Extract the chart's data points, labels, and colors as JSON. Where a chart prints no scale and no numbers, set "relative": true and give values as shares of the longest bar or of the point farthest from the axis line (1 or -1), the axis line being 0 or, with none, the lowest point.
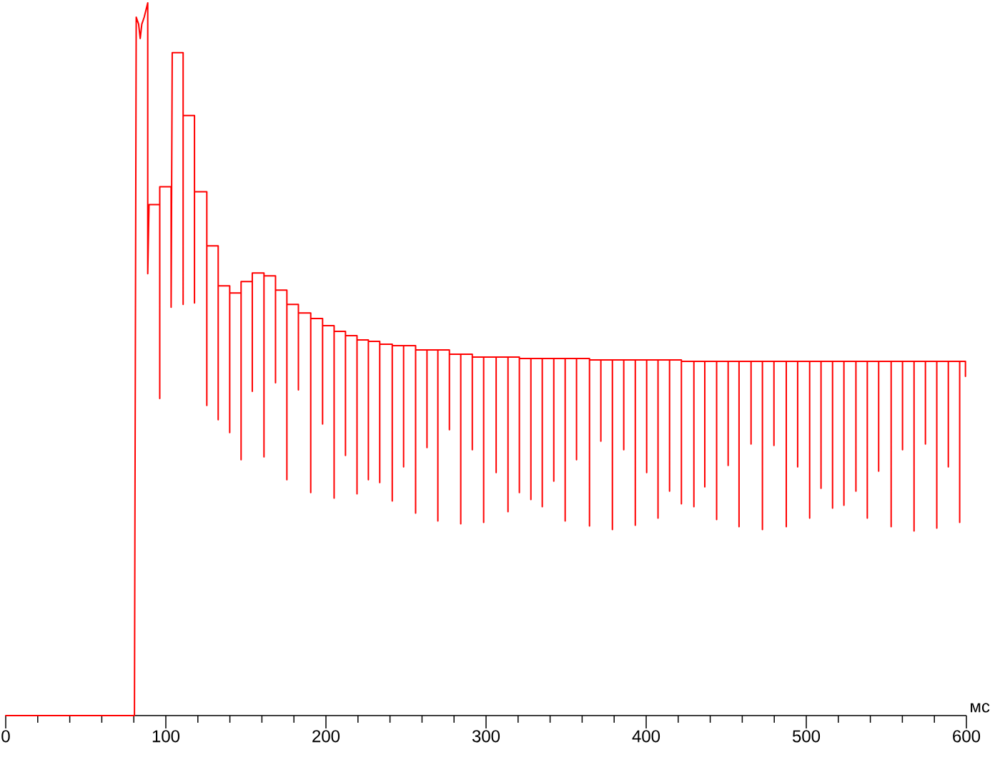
{
  "chart_data": {
    "type": "line",
    "relative": true,
    "xlabel": "мс",
    "color": "#ff0000",
    "tick_labels": "x",
    "xlim": [
      0,
      600
    ],
    "xticks": [
      0,
      100,
      200,
      300,
      400,
      500,
      600
    ],
    "x": [
      0,
      80.4,
      81.5,
      83,
      84,
      85,
      86.5,
      88.7,
      88.7,
      89.5,
      96.2,
      96.2,
      96.2,
      103.3,
      103.3,
      104,
      110.8,
      110.8,
      110.8,
      117.9,
      117.9,
      117.9,
      125.6,
      125.6,
      125.6,
      132.7,
      132.7,
      132.7,
      139.9,
      139.9,
      139.9,
      147,
      147,
      147,
      154,
      154,
      154,
      161.3,
      161.3,
      161.3,
      168.5,
      168.5,
      168.5,
      175.6,
      175.6,
      175.6,
      182.8,
      182.8,
      182.8,
      190.5,
      190.5,
      190.5,
      197.9,
      197.9,
      197.9,
      205.1,
      205.1,
      205.1,
      212.2,
      212.2,
      212.2,
      219.4,
      219.4,
      219.4,
      226.5,
      226.5,
      226.5,
      233.6,
      233.6,
      233.6,
      241.4,
      241.4,
      241.4,
      248.5,
      248.5,
      248.5,
      256.0,
      256.0,
      256.0,
      263.1,
      263.1,
      263.1,
      269.9,
      269.9,
      269.9,
      277.1,
      277.1,
      277.1,
      284.2,
      284.2,
      284.2,
      291.4,
      291.4,
      291.4,
      298.5,
      298.5,
      298.5,
      306.3,
      306.3,
      306.3,
      313.7,
      313.7,
      313.7,
      320.8,
      320.8,
      320.8,
      328.0,
      328.0,
      328.0,
      335.1,
      335.1,
      335.1,
      342.3,
      342.3,
      342.3,
      349.4,
      349.4,
      349.4,
      356.5,
      356.5,
      356.5,
      364.6,
      364.6,
      364.6,
      371.7,
      371.7,
      371.7,
      378.9,
      378.9,
      378.9,
      386.0,
      386.0,
      386.0,
      393.2,
      393.2,
      393.2,
      400.3,
      400.3,
      400.3,
      407.4,
      407.4,
      407.4,
      414.6,
      414.6,
      414.6,
      422.0,
      422.0,
      422.0,
      429.8,
      429.8,
      429.8,
      436.6,
      436.6,
      436.6,
      444.0,
      444.0,
      444.0,
      451.2,
      451.2,
      451.2,
      458.0,
      458.0,
      458.0,
      465.5,
      465.5,
      465.5,
      472.6,
      472.6,
      472.6,
      479.8,
      479.8,
      479.8,
      487.5,
      487.5,
      487.5,
      494.6,
      494.6,
      494.6,
      502.1,
      502.1,
      502.1,
      509.2,
      509.2,
      509.2,
      516.4,
      516.4,
      516.4,
      523.5,
      523.5,
      523.5,
      531.0,
      531.0,
      531.0,
      538.1,
      538.1,
      538.1,
      545.2,
      545.2,
      545.2,
      553.0,
      553.0,
      553.0,
      560.1,
      560.1,
      560.1,
      567.3,
      567.3,
      567.3,
      574.4,
      574.4,
      574.4,
      581.5,
      581.5,
      581.5,
      588.7,
      588.7,
      588.7,
      595.8,
      595.8,
      595.8,
      599.4,
      599.4
    ],
    "values": [
      0,
      0,
      0.98,
      0.97,
      0.95,
      0.97,
      0.98,
      1.0,
      0.62,
      0.717,
      0.717,
      0.445,
      0.742,
      0.742,
      0.573,
      0.93,
      0.93,
      0.577,
      0.842,
      0.842,
      0.579,
      0.735,
      0.735,
      0.435,
      0.659,
      0.659,
      0.415,
      0.603,
      0.603,
      0.397,
      0.593,
      0.593,
      0.359,
      0.609,
      0.609,
      0.455,
      0.621,
      0.621,
      0.363,
      0.617,
      0.617,
      0.467,
      0.597,
      0.597,
      0.331,
      0.577,
      0.577,
      0.457,
      0.565,
      0.565,
      0.313,
      0.557,
      0.557,
      0.409,
      0.547,
      0.547,
      0.305,
      0.539,
      0.539,
      0.365,
      0.533,
      0.533,
      0.311,
      0.527,
      0.527,
      0.331,
      0.525,
      0.525,
      0.327,
      0.521,
      0.521,
      0.301,
      0.519,
      0.519,
      0.349,
      0.519,
      0.519,
      0.284,
      0.513,
      0.513,
      0.376,
      0.513,
      0.513,
      0.273,
      0.513,
      0.513,
      0.401,
      0.507,
      0.507,
      0.269,
      0.507,
      0.507,
      0.373,
      0.503,
      0.503,
      0.271,
      0.503,
      0.503,
      0.341,
      0.503,
      0.503,
      0.286,
      0.503,
      0.503,
      0.313,
      0.501,
      0.501,
      0.303,
      0.501,
      0.501,
      0.293,
      0.501,
      0.501,
      0.329,
      0.501,
      0.501,
      0.273,
      0.501,
      0.501,
      0.359,
      0.501,
      0.501,
      0.266,
      0.499,
      0.499,
      0.385,
      0.499,
      0.499,
      0.261,
      0.499,
      0.499,
      0.373,
      0.499,
      0.499,
      0.267,
      0.499,
      0.499,
      0.341,
      0.499,
      0.499,
      0.277,
      0.499,
      0.499,
      0.315,
      0.499,
      0.499,
      0.297,
      0.497,
      0.497,
      0.293,
      0.497,
      0.497,
      0.321,
      0.497,
      0.497,
      0.275,
      0.497,
      0.497,
      0.351,
      0.497,
      0.497,
      0.265,
      0.497,
      0.497,
      0.381,
      0.497,
      0.497,
      0.261,
      0.497,
      0.497,
      0.379,
      0.497,
      0.497,
      0.265,
      0.497,
      0.497,
      0.349,
      0.497,
      0.497,
      0.277,
      0.497,
      0.497,
      0.319,
      0.497,
      0.497,
      0.291,
      0.497,
      0.497,
      0.295,
      0.497,
      0.497,
      0.315,
      0.497,
      0.497,
      0.277,
      0.497,
      0.497,
      0.343,
      0.497,
      0.497,
      0.265,
      0.497,
      0.497,
      0.373,
      0.497,
      0.497,
      0.259,
      0.497,
      0.497,
      0.381,
      0.497,
      0.497,
      0.263,
      0.497,
      0.497,
      0.349,
      0.497,
      0.497,
      0.271,
      0.497,
      0.497,
      0.476
    ]
  }
}
